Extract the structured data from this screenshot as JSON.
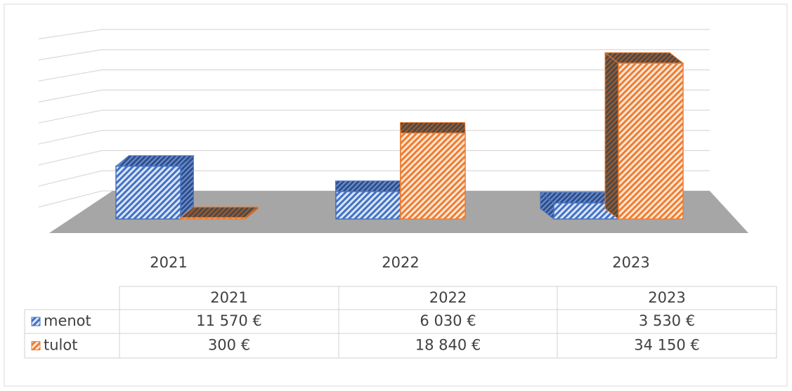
{
  "chart_data": {
    "type": "bar3d",
    "categories": [
      "2021",
      "2022",
      "2023"
    ],
    "series": [
      {
        "name": "menot",
        "color": "#4472c4",
        "values": [
          11570,
          6030,
          3530
        ],
        "value_labels": [
          "11 570 €",
          "6 030 €",
          "3 530 €"
        ]
      },
      {
        "name": "tulot",
        "color": "#ed7d31",
        "values": [
          300,
          18840,
          34150
        ],
        "value_labels": [
          "300 €",
          "18 840 €",
          "34 150 €"
        ]
      }
    ],
    "ylim": [
      0,
      40000
    ],
    "yticks": [
      0,
      5000,
      10000,
      15000,
      20000,
      25000,
      30000,
      35000,
      40000
    ],
    "grid": true
  }
}
